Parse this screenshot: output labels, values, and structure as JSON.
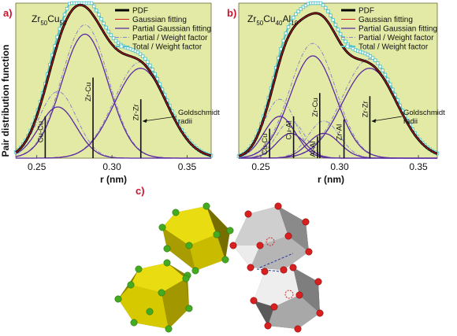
{
  "chart_data": [
    {
      "panel": "a)",
      "type": "line",
      "title": "Zr50Cu50",
      "title_parts": {
        "a": "Zr",
        "a_sub": "50",
        "b": "Cu",
        "b_sub": "50"
      },
      "xlabel": "r (nm)",
      "ylabel": "Pair distribution function",
      "xlim": [
        0.236,
        0.366
      ],
      "ylim": [
        0,
        1.0
      ],
      "x_ticks": [
        "0.25",
        "0.30",
        "0.35"
      ],
      "x_tick_values": [
        0.25,
        0.3,
        0.35
      ],
      "legend_position": "top-right",
      "legend": [
        "PDF",
        "Gaussian fitting",
        "Partial Gaussian fitting",
        "Partial / Weight factor",
        "Total / Weight factor"
      ],
      "peaks": [
        {
          "name": "Cu-Cu",
          "center": 0.264,
          "height": 0.33,
          "width": 0.0125
        },
        {
          "name": "Zr-Cu",
          "center": 0.282,
          "height": 0.8,
          "width": 0.0155
        },
        {
          "name": "Zr-Zr",
          "center": 0.319,
          "height": 0.58,
          "width": 0.0175
        }
      ],
      "weighted_peaks": [
        {
          "name": "Cu-Cu",
          "center": 0.264,
          "height": 0.43,
          "width": 0.0125
        },
        {
          "name": "Zr-Cu",
          "center": 0.282,
          "height": 0.86,
          "width": 0.0155
        },
        {
          "name": "Zr-Zr",
          "center": 0.319,
          "height": 0.62,
          "width": 0.0175
        }
      ],
      "total_scale": 1.07,
      "goldschmidt_radii": [
        {
          "label": "Cu-Cu",
          "r": 0.2556,
          "top": 0.27
        },
        {
          "label": "Zr-Cu",
          "r": 0.2874,
          "top": 0.52
        },
        {
          "label": "Zr-Zr",
          "r": 0.3192,
          "top": 0.38
        }
      ],
      "annotation": [
        "Goldschmidt",
        "radii"
      ]
    },
    {
      "panel": "b)",
      "type": "line",
      "title": "Zr50Cu40Al10",
      "title_parts": {
        "a": "Zr",
        "a_sub": "50",
        "b": "Cu",
        "b_sub": "40",
        "c": "Al",
        "c_sub": "10"
      },
      "xlabel": "r (nm)",
      "ylabel": "",
      "xlim": [
        0.236,
        0.362
      ],
      "ylim": [
        0,
        1.0
      ],
      "x_ticks": [
        "0.25",
        "0.30",
        "0.35"
      ],
      "x_tick_values": [
        0.25,
        0.3,
        0.35
      ],
      "legend_position": "top-right",
      "legend": [
        "PDF",
        "Gaussian fitting",
        "Partial Gaussian fitting",
        "Partial / Weight factor",
        "Total / Weight factor"
      ],
      "peaks": [
        {
          "name": "Cu-Cu",
          "center": 0.262,
          "height": 0.27,
          "width": 0.01
        },
        {
          "name": "Cu-Al",
          "center": 0.269,
          "height": 0.16,
          "width": 0.009
        },
        {
          "name": "Zr-Cu",
          "center": 0.283,
          "height": 0.66,
          "width": 0.0145
        },
        {
          "name": "Zr-Al",
          "center": 0.29,
          "height": 0.16,
          "width": 0.01
        },
        {
          "name": "Zr-Zr",
          "center": 0.319,
          "height": 0.58,
          "width": 0.0175
        }
      ],
      "weighted_peaks": [
        {
          "name": "Cu-Cu",
          "center": 0.262,
          "height": 0.38,
          "width": 0.01
        },
        {
          "name": "Cu-Al",
          "center": 0.269,
          "height": 0.24,
          "width": 0.009
        },
        {
          "name": "Zr-Cu",
          "center": 0.283,
          "height": 0.74,
          "width": 0.0145
        },
        {
          "name": "Zr-Al",
          "center": 0.29,
          "height": 0.24,
          "width": 0.01
        },
        {
          "name": "Zr-Zr",
          "center": 0.319,
          "height": 0.64,
          "width": 0.0175
        }
      ],
      "total_scale": 1.08,
      "goldschmidt_radii": [
        {
          "label": "Cu-Cu",
          "r": 0.2556,
          "top": 0.19
        },
        {
          "label": "Cu-Al",
          "r": 0.2708,
          "top": 0.27
        },
        {
          "label": "Zr-Cu",
          "r": 0.2874,
          "top": 0.42
        },
        {
          "label": "Al-Al",
          "r": 0.286,
          "top": 0.14
        },
        {
          "label": "Zr-Al",
          "r": 0.3028,
          "top": 0.25
        },
        {
          "label": "Zr-Zr",
          "r": 0.3192,
          "top": 0.4
        }
      ],
      "annotation": [
        "Goldschmidt",
        "radii"
      ]
    }
  ],
  "panel_c": {
    "label": "c)",
    "left_cluster": {
      "face_color": "#d6c800",
      "vertex_color": "#44aa22"
    },
    "right_cluster": {
      "face_color": "#9a9a9a",
      "vertex_color": "#d82020"
    }
  },
  "colors": {
    "plot_bg": "#e2eaa6",
    "pdf": "#000000",
    "gaussian_fit": "#cc2020",
    "partial_fit": "#5a2aa0",
    "partial_weight": "#8b86c8",
    "total_weight": "#57c3c8",
    "panel_label": "#d0102a"
  }
}
